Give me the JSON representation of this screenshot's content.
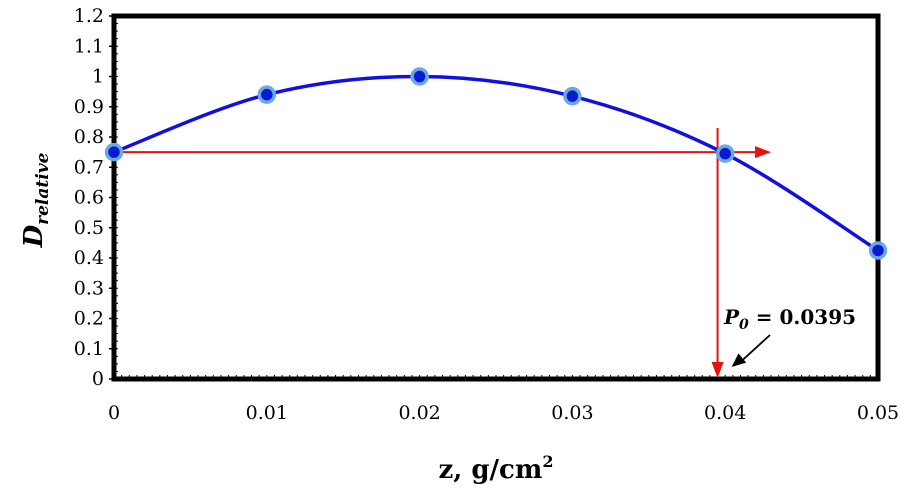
{
  "chart_data": {
    "type": "line",
    "title": "",
    "xlabel": {
      "main": "z, g/cm",
      "sup": "2"
    },
    "ylabel": {
      "main": "D",
      "sub": "relative"
    },
    "xlim": [
      0,
      0.05
    ],
    "ylim": [
      0,
      1.2
    ],
    "x_ticks": [
      "0",
      "0.01",
      "0.02",
      "0.03",
      "0.04",
      "0.05"
    ],
    "y_ticks": [
      "0",
      "0.1",
      "0.2",
      "0.3",
      "0.4",
      "0.5",
      "0.6",
      "0.7",
      "0.8",
      "0.9",
      "1",
      "1.1",
      "1.2"
    ],
    "grid": false,
    "series": [
      {
        "x": [
          0,
          0.01,
          0.02,
          0.03,
          0.04,
          0.05
        ],
        "y": [
          0.75,
          0.94,
          1.0,
          0.935,
          0.745,
          0.425
        ]
      }
    ],
    "curve_color": "#1010e0",
    "marker_fill": "#0a1ad0",
    "marker_edge": "#6aa8e8",
    "annotation": {
      "text_main": "P",
      "text_sub": "0",
      "text_rest": " = 0.0395",
      "x": 0.0395,
      "y_level": 0.75,
      "color": "#e81010"
    }
  }
}
